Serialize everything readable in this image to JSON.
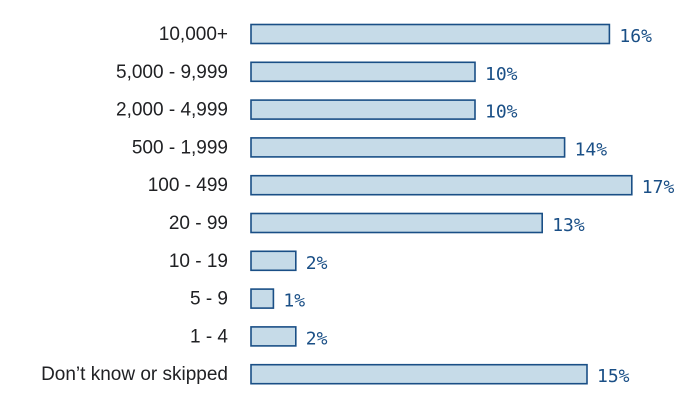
{
  "chart_data": {
    "type": "bar",
    "orientation": "horizontal",
    "categories": [
      "10,000+",
      "5,000 - 9,999",
      "2,000 - 4,999",
      "500 - 1,999",
      "100 - 499",
      "20 - 99",
      "10 - 19",
      "5 - 9",
      "1 - 4",
      "Don’t know or skipped"
    ],
    "values": [
      16,
      10,
      10,
      14,
      17,
      13,
      2,
      1,
      2,
      15
    ],
    "value_labels": [
      "16%",
      "10%",
      "10%",
      "14%",
      "17%",
      "13%",
      "2%",
      "1%",
      "2%",
      "15%"
    ],
    "unit": "%",
    "title": "",
    "xlabel": "",
    "ylabel": "",
    "grid": false,
    "legend": "none",
    "colors": {
      "bar_fill": "#c6dbe8",
      "bar_stroke": "#1a4f86",
      "value_text": "#1a4f86",
      "category_text": "#202124"
    }
  }
}
